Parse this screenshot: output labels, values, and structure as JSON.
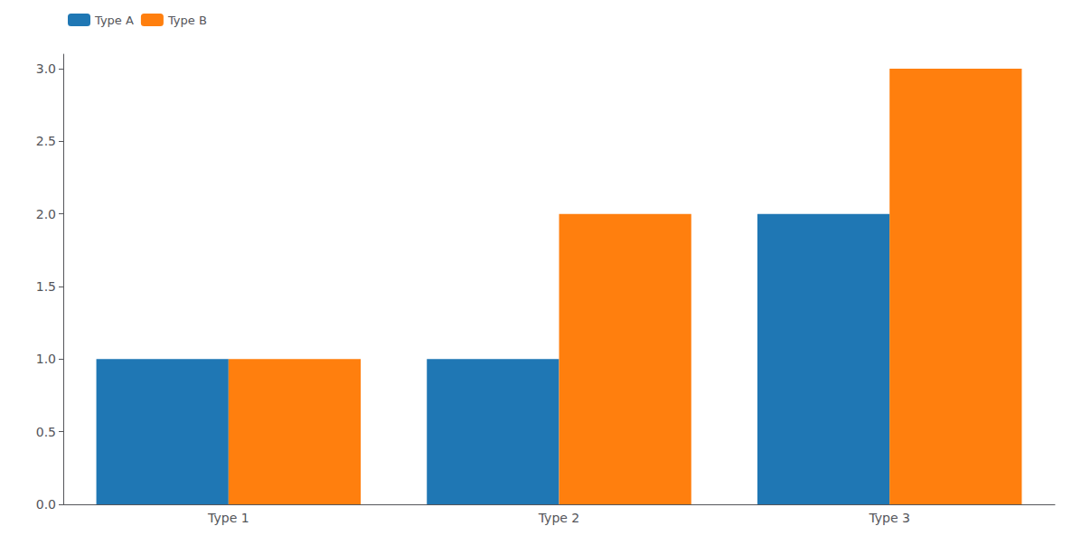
{
  "chart_data": {
    "type": "bar",
    "categories": [
      "Type 1",
      "Type 2",
      "Type 3"
    ],
    "series": [
      {
        "name": "Type A",
        "color": "#1f77b4",
        "values": [
          1,
          1,
          2
        ]
      },
      {
        "name": "Type B",
        "color": "#ff7f0e",
        "values": [
          1,
          2,
          3
        ]
      }
    ],
    "ylim": [
      0,
      3.1
    ],
    "yticks": [
      {
        "value": 0,
        "label": "0.0"
      },
      0.5,
      {
        "value": 1,
        "label": "1.0"
      },
      1.5,
      {
        "value": 2,
        "label": "2.0"
      },
      2.5,
      {
        "value": 3,
        "label": "3.0"
      }
    ],
    "grid": false,
    "legend": "upper left"
  }
}
